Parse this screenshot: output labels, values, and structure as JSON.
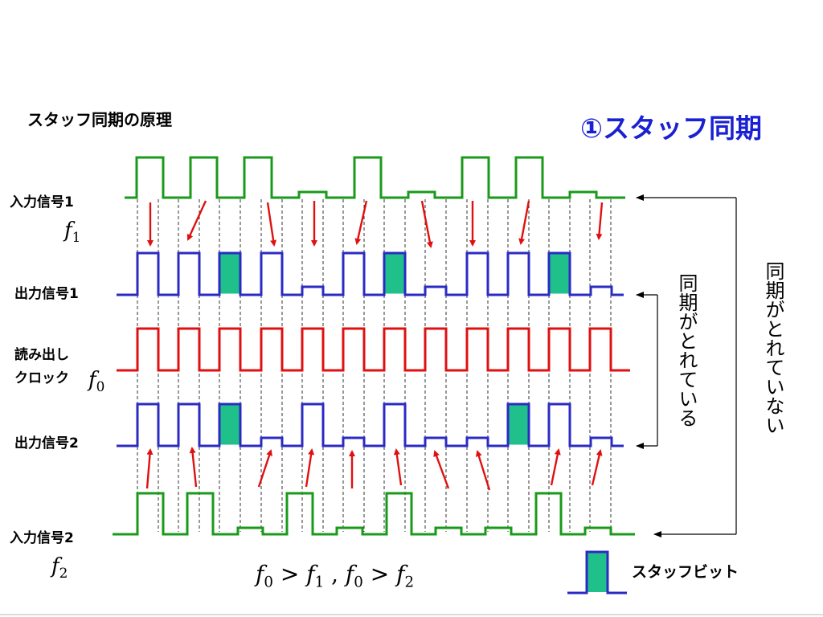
{
  "heading": "スタッフ同期の原理",
  "title": "①スタッフ同期",
  "labels": {
    "in1": "入力信号1",
    "f1_sym": "f",
    "f1_sub": "1",
    "out1": "出力信号1",
    "read_line1": "読み出し",
    "read_line2": "クロック",
    "f0_sym": "f",
    "f0_sub": "0",
    "out2": "出力信号2",
    "in2": "入力信号2",
    "f2_sym": "f",
    "f2_sub": "2"
  },
  "formula": {
    "part1": "f",
    "sub1": "0",
    "op1": " > ",
    "part2": "f",
    "sub2": "1",
    "sep": " , ",
    "part3": "f",
    "sub3": "0",
    "op2": " > ",
    "part4": "f",
    "sub4": "2"
  },
  "annotations": {
    "synced": "同期がとれている",
    "not_synced": "同期がとれていない"
  },
  "legend": {
    "label": "スタッフビット"
  },
  "colors": {
    "input": "#1a9a1a",
    "output": "#2b2bc4",
    "clock": "#e01010",
    "stuff": "#1fc08a",
    "arrow": "#e01010",
    "title": "#1a21d2"
  }
}
